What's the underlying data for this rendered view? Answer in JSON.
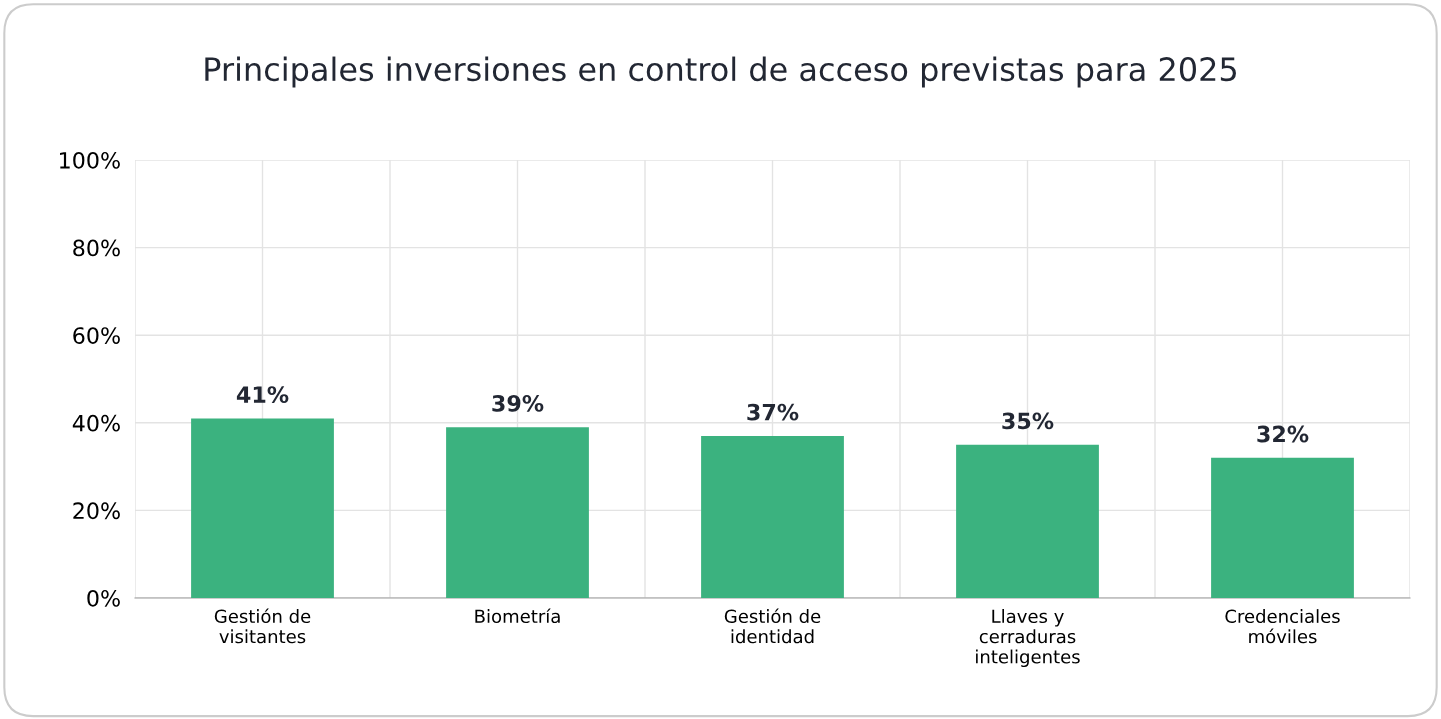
{
  "chart_data": {
    "type": "bar",
    "title": "Principales inversiones en control de acceso previstas para 2025",
    "categories": [
      "Gestión de\nvisitantes",
      "Biometría",
      "Gestión de\nidentidad",
      "Llaves y\ncerraduras\ninteligentes",
      "Credenciales\nmóviles"
    ],
    "values": [
      41,
      39,
      37,
      35,
      32
    ],
    "color": "#3bb27f",
    "ylim": [
      0,
      100
    ],
    "yticks": [
      {
        "value": 0,
        "label": "0%"
      },
      {
        "value": 20,
        "label": "20%"
      },
      {
        "value": 40,
        "label": "40%"
      },
      {
        "value": 60,
        "label": "60%"
      },
      {
        "value": 80,
        "label": "80%"
      },
      {
        "value": 100,
        "label": "100%"
      }
    ],
    "value_labels": [
      "41%",
      "39%",
      "37%",
      "35%",
      "32%"
    ],
    "grid": true,
    "legend": false
  }
}
